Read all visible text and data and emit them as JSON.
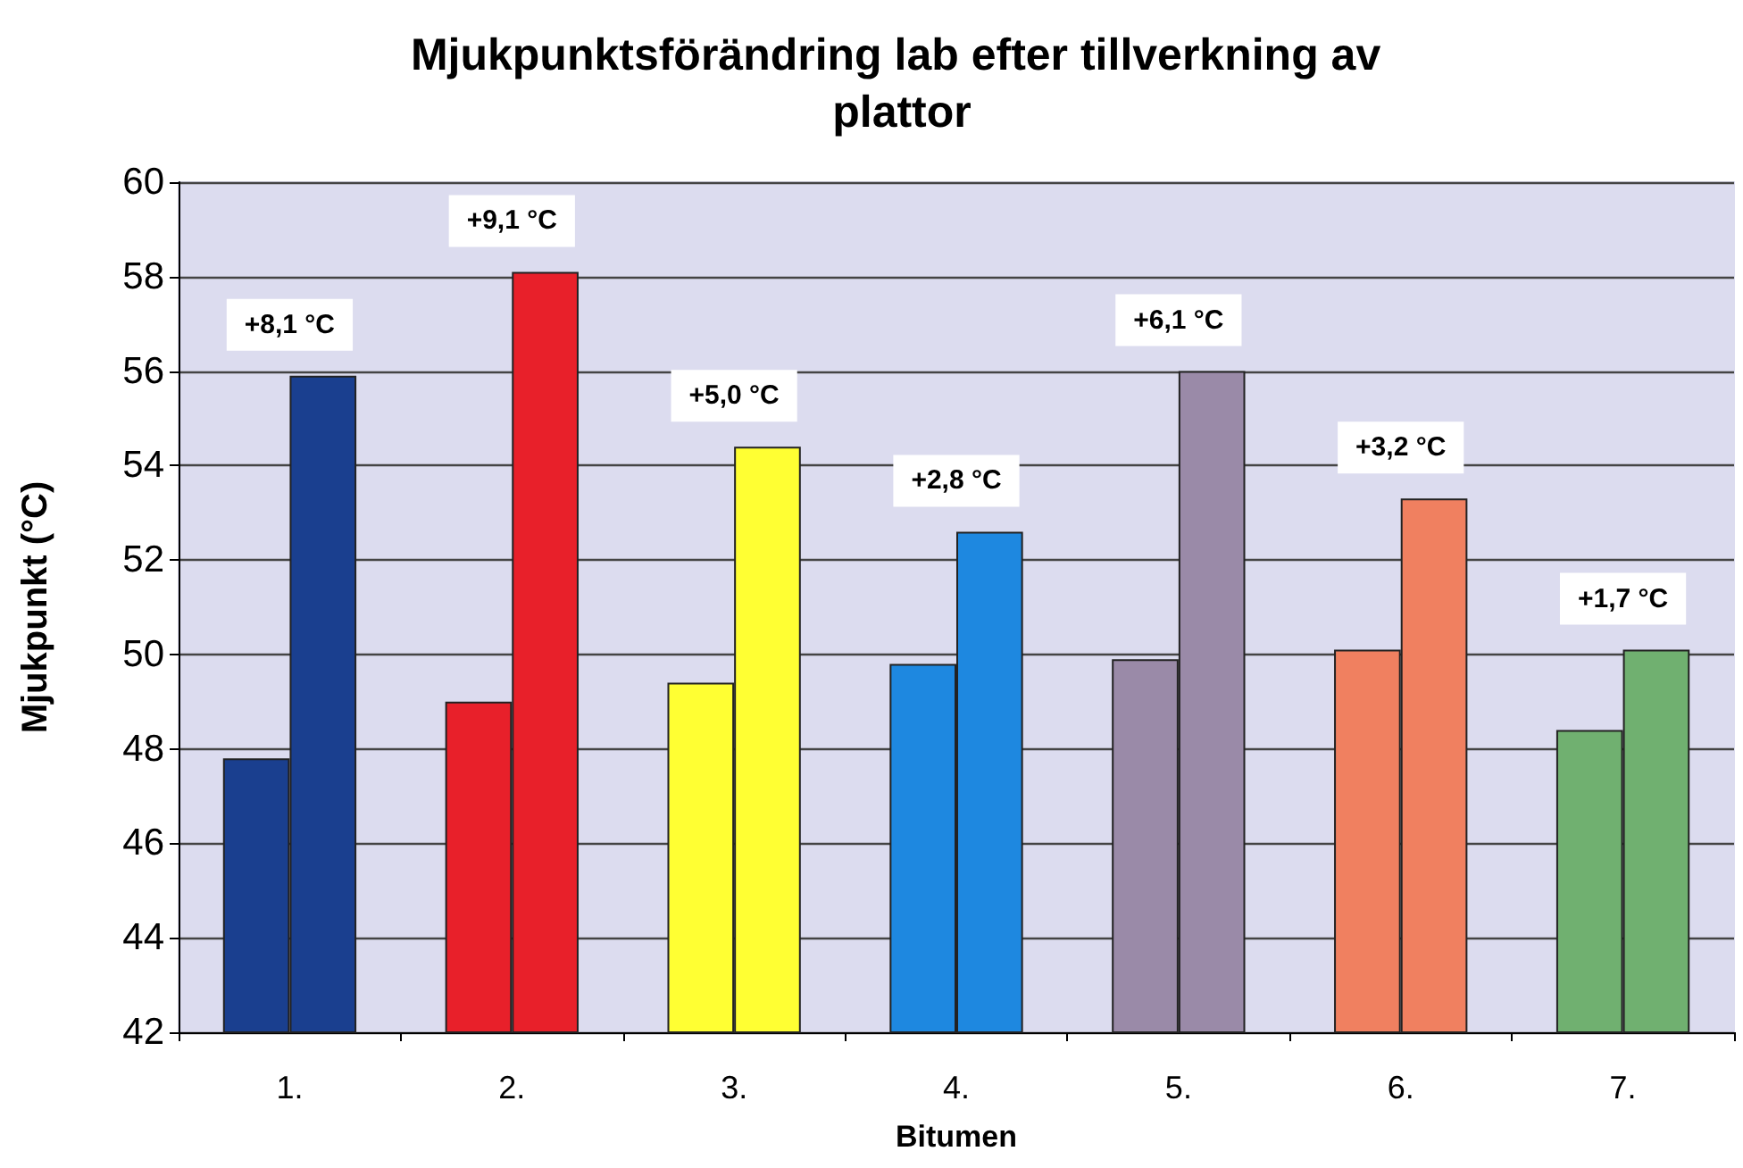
{
  "chart_data": {
    "type": "bar",
    "title": "Mjukpunktsförändring lab efter tillverkning av plattor",
    "xlabel": "Bitumen",
    "ylabel": "Mjukpunkt (°C)",
    "categories": [
      "1.",
      "2.",
      "3.",
      "4.",
      "5.",
      "6.",
      "7."
    ],
    "series": [
      {
        "colors": [
          "#1a3f8f",
          "#e8202a",
          "#ffff33",
          "#1e88e0",
          "#9a8aa8",
          "#f08060",
          "#70b070"
        ],
        "values": [
          47.8,
          49.0,
          49.4,
          49.8,
          49.9,
          50.1,
          48.4
        ]
      },
      {
        "colors": [
          "#1a3f8f",
          "#e8202a",
          "#ffff33",
          "#1e88e0",
          "#9a8aa8",
          "#f08060",
          "#70b070"
        ],
        "values": [
          55.9,
          58.1,
          54.4,
          52.6,
          56.0,
          53.3,
          50.1
        ]
      }
    ],
    "annotations": [
      {
        "text": "+8,1 °C",
        "x": "1.",
        "y": 55.9
      },
      {
        "text": "+9,1 °C",
        "x": "2.",
        "y": 58.1
      },
      {
        "text": "+5,0 °C",
        "x": "3.",
        "y": 54.4
      },
      {
        "text": "+2,8 °C",
        "x": "4.",
        "y": 52.6
      },
      {
        "text": "+6,1 °C",
        "x": "5.",
        "y": 56.0
      },
      {
        "text": "+3,2 °C",
        "x": "6.",
        "y": 53.3
      },
      {
        "text": "+1,7 °C",
        "x": "7.",
        "y": 50.1
      }
    ],
    "ylim": [
      42,
      60
    ],
    "yticks": [
      42,
      44,
      46,
      48,
      50,
      52,
      54,
      56,
      58,
      60
    ],
    "grid": "y"
  }
}
